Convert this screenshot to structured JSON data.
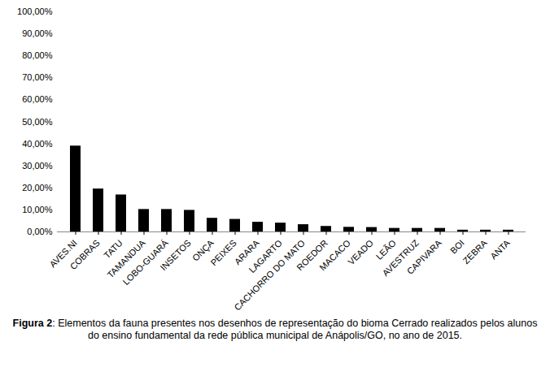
{
  "chart_data": {
    "type": "bar",
    "caption": "Figura 2: Elementos da fauna presentes nos desenhos de representação do bioma Cerrado realizados pelos alunos do ensino fundamental da rede pública municipal de Anápolis/GO, no ano de 2015.",
    "categories": [
      "AVES.NI",
      "COBRAS",
      "TATU",
      "TAMANDUA",
      "LOBO-GUARÁ",
      "INSETOS",
      "ONÇA",
      "PEIXES",
      "ARARA",
      "LAGARTO",
      "CACHORRO DO MATO",
      "ROEDOR",
      "MACACO",
      "VEADO",
      "LEÃO",
      "AVESTRUZ",
      "CAPIVARA",
      "BOI",
      "ZEBRA",
      "ANTA"
    ],
    "values": [
      39,
      19.5,
      16.8,
      10.2,
      10.2,
      9.8,
      6.2,
      5.7,
      4.4,
      4.0,
      3.3,
      2.5,
      2.1,
      2.0,
      1.6,
      1.6,
      1.6,
      0.8,
      0.8,
      0.8
    ],
    "color": "#000000",
    "ylim": [
      0,
      100
    ],
    "yticks": [
      {
        "value": 0,
        "label": "0,00%"
      },
      {
        "value": 10,
        "label": "10,00%"
      },
      {
        "value": 20,
        "label": "20,00%"
      },
      {
        "value": 30,
        "label": "30,00%"
      },
      {
        "value": 40,
        "label": "40,00%"
      },
      {
        "value": 50,
        "label": "50,00%"
      },
      {
        "value": 60,
        "label": "60,00%"
      },
      {
        "value": 70,
        "label": "70,00%"
      },
      {
        "value": 80,
        "label": "80,00%"
      },
      {
        "value": 90,
        "label": "90,00%"
      },
      {
        "value": 100,
        "label": "100,00%"
      }
    ],
    "grid": false
  }
}
